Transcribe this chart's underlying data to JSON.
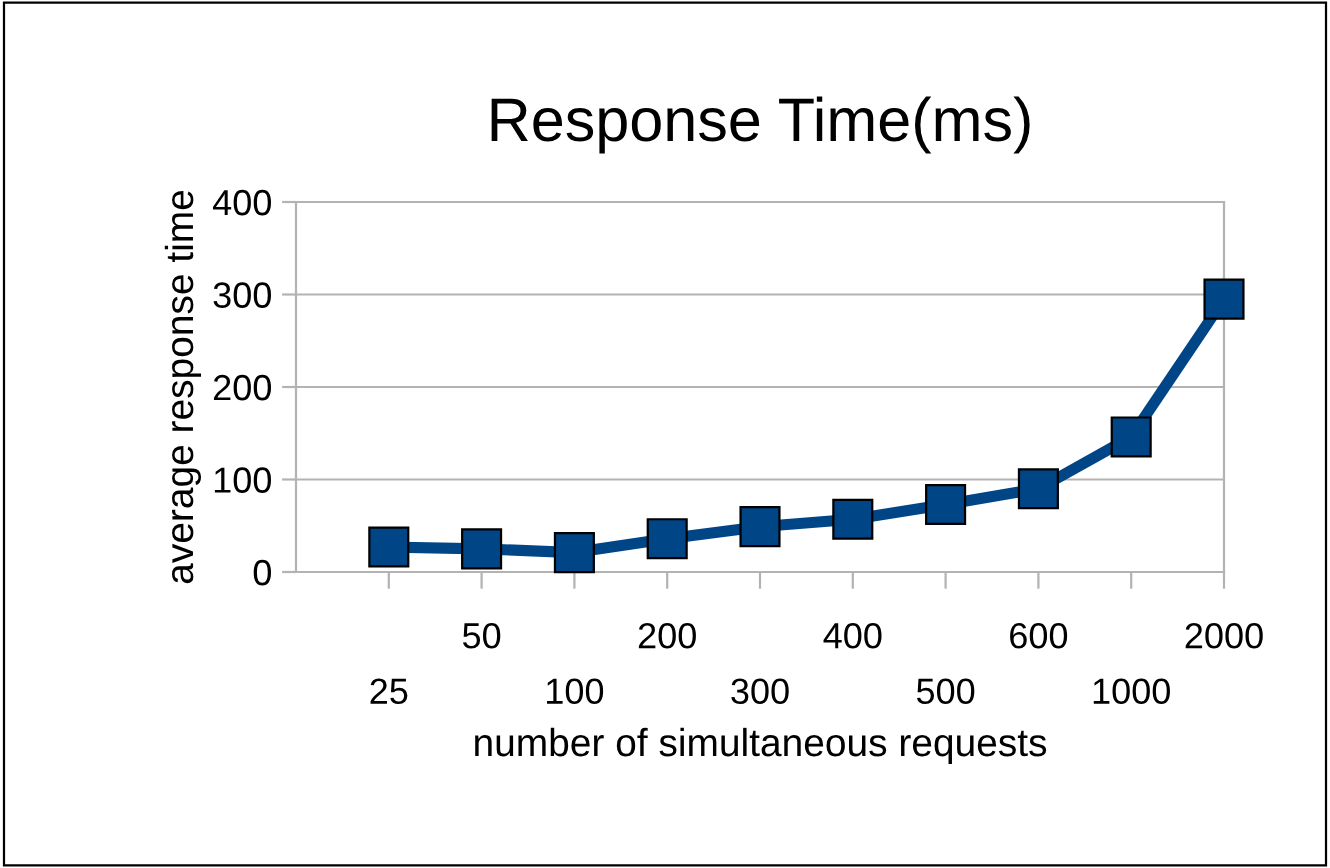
{
  "chart_data": {
    "type": "line",
    "title": "Response Time(ms)",
    "xlabel": "number of simultaneous requests",
    "ylabel": "average response time",
    "categories": [
      "25",
      "50",
      "100",
      "200",
      "300",
      "400",
      "500",
      "600",
      "1000",
      "2000"
    ],
    "series": [
      {
        "color": "#004586",
        "values": [
          27,
          25,
          21,
          36,
          49,
          57,
          73,
          90,
          146,
          295
        ]
      }
    ],
    "ylim": [
      0,
      400
    ],
    "yticks": [
      0,
      100,
      200,
      300,
      400
    ],
    "grid": "y",
    "marker": "square",
    "line_style": "solid"
  }
}
